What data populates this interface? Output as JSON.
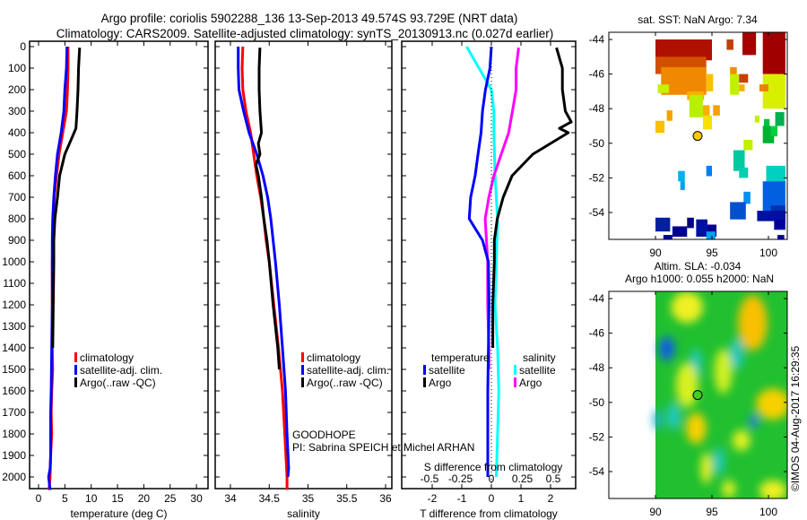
{
  "header": {
    "title_line1": "Argo profile: coriolis 5902288_136 13-Sep-2013 49.574S 93.729E (NRT data)",
    "title_line2": "Climatology: CARS2009. Satellite-adjusted climatology: synTS_20130913.nc (0.027d earlier)"
  },
  "footer": {
    "project": "GOODHOPE",
    "pi": "PI: Sabrina SPEICH et Michel ARHAN",
    "stamp": "©IMOS 04-Aug-2017 16:29:35"
  },
  "colors": {
    "climatology": "#ff0000",
    "satellite": "#0000ff",
    "argo": "#000000",
    "s_satellite": "#00ffff",
    "s_argo": "#ff00ff"
  },
  "chart_data": [
    {
      "type": "line",
      "panel": "temperature",
      "xlabel": "temperature (deg C)",
      "ylabel": "",
      "xlim": [
        -1.7,
        32
      ],
      "ylim": [
        2060,
        -25
      ],
      "xticks": [
        "0",
        "5",
        "10",
        "15",
        "20",
        "25",
        "30"
      ],
      "xtick_values": [
        0,
        5,
        10,
        15,
        20,
        25,
        30
      ],
      "yticks": [
        "0",
        "100",
        "200",
        "300",
        "400",
        "500",
        "600",
        "700",
        "800",
        "900",
        "1000",
        "1100",
        "1200",
        "1300",
        "1400",
        "1500",
        "1600",
        "1700",
        "1800",
        "1900",
        "2000"
      ],
      "legend": [
        "climatology",
        "satellite-adj. clim.",
        "Argo(..raw -QC)"
      ],
      "series": [
        {
          "name": "climatology",
          "color": "#ff0000",
          "depth": [
            0,
            100,
            200,
            300,
            400,
            500,
            600,
            700,
            800,
            900,
            1000,
            1200,
            1400,
            1500,
            1600,
            1700,
            1800,
            1900,
            2000,
            2060
          ],
          "values": [
            5.6,
            5.6,
            5.5,
            5.3,
            4.6,
            3.9,
            3.4,
            3.0,
            2.8,
            2.7,
            2.6,
            2.6,
            2.6,
            2.7,
            2.5,
            2.4,
            2.5,
            2.3,
            2.2,
            2.0
          ]
        },
        {
          "name": "satellite-adj. clim.",
          "color": "#0000ff",
          "depth": [
            0,
            100,
            200,
            300,
            400,
            500,
            600,
            700,
            800,
            900,
            1000,
            1200,
            1400,
            1600,
            1700,
            1800,
            1900,
            1960,
            2000,
            2060
          ],
          "values": [
            5.4,
            5.3,
            5.0,
            4.8,
            4.3,
            3.6,
            3.2,
            2.9,
            2.7,
            2.6,
            2.6,
            2.6,
            2.5,
            2.4,
            2.3,
            2.3,
            2.3,
            2.2,
            1.9,
            2.2
          ]
        },
        {
          "name": "Argo(..raw -QC)",
          "color": "#000000",
          "depth": [
            5,
            100,
            200,
            300,
            380,
            420,
            500,
            600,
            700,
            800,
            900,
            1000,
            1200,
            1400
          ],
          "values": [
            7.8,
            7.6,
            7.5,
            7.3,
            7.1,
            6.4,
            5.0,
            4.0,
            3.6,
            3.1,
            2.9,
            2.9,
            2.8,
            2.7
          ]
        }
      ]
    },
    {
      "type": "line",
      "panel": "salinity",
      "xlabel": "salinity",
      "xlim": [
        33.8,
        36.1
      ],
      "ylim": [
        2060,
        -25
      ],
      "xticks": [
        "34",
        "34.5",
        "35",
        "35.5",
        "36"
      ],
      "xtick_values": [
        34,
        34.5,
        35,
        35.5,
        36
      ],
      "legend": [
        "climatology",
        "satellite-adj. clim.",
        "Argo(..raw -QC)"
      ],
      "series": [
        {
          "name": "climatology",
          "color": "#ff0000",
          "depth": [
            0,
            100,
            200,
            300,
            400,
            500,
            600,
            700,
            800,
            900,
            1000,
            1200,
            1400,
            1600,
            1800,
            2000,
            2060
          ],
          "values": [
            34.16,
            34.15,
            34.16,
            34.2,
            34.26,
            34.3,
            34.34,
            34.39,
            34.43,
            34.46,
            34.5,
            34.56,
            34.62,
            34.67,
            34.7,
            34.73,
            34.73
          ]
        },
        {
          "name": "satellite-adj. clim.",
          "color": "#0000ff",
          "depth": [
            0,
            100,
            200,
            300,
            400,
            500,
            600,
            700,
            800,
            900,
            1000,
            1200,
            1400,
            1600,
            1800,
            1960,
            2000
          ],
          "values": [
            34.1,
            34.1,
            34.11,
            34.17,
            34.24,
            34.34,
            34.42,
            34.48,
            34.52,
            34.55,
            34.58,
            34.63,
            34.67,
            34.71,
            34.73,
            34.75,
            34.74
          ]
        },
        {
          "name": "Argo(..raw -QC)",
          "color": "#000000",
          "depth": [
            5,
            100,
            200,
            300,
            400,
            450,
            500,
            550,
            600,
            700,
            800,
            900,
            1000,
            1200,
            1400,
            1500
          ],
          "values": [
            34.38,
            34.37,
            34.37,
            34.38,
            34.4,
            34.36,
            34.38,
            34.33,
            34.36,
            34.4,
            34.43,
            34.47,
            34.5,
            34.55,
            34.61,
            34.63
          ]
        }
      ]
    },
    {
      "type": "line",
      "panel": "difference",
      "xlabel": "T difference from climatology",
      "xlabel_top": "S difference from climatology",
      "xlim": [
        -3,
        3
      ],
      "xticks": [
        "-2",
        "-1",
        "0",
        "1",
        "2"
      ],
      "xtick_values": [
        -2,
        -1,
        0,
        1,
        2
      ],
      "s_xticks": [
        "-0.5",
        "-0.25",
        "0",
        "0.25",
        "0.5"
      ],
      "s_xtick_values": [
        -0.5,
        -0.25,
        0,
        0.25,
        0.5
      ],
      "legend_headers": [
        "temperature",
        "salinity"
      ],
      "legend": [
        "satellite",
        "Argo",
        "satellite",
        "Argo"
      ],
      "series": [
        {
          "name": "T satellite",
          "color": "#0000ff",
          "axis": "T",
          "depth": [
            0,
            100,
            200,
            300,
            400,
            500,
            600,
            700,
            800,
            900,
            1000,
            1200,
            1400,
            1600,
            2000
          ],
          "values": [
            0.0,
            -0.05,
            -0.2,
            -0.3,
            -0.35,
            -0.45,
            -0.55,
            -0.7,
            -0.75,
            -0.3,
            -0.1,
            -0.08,
            -0.1,
            -0.12,
            -0.12
          ]
        },
        {
          "name": "T Argo",
          "color": "#000000",
          "axis": "T",
          "depth": [
            5,
            100,
            200,
            300,
            350,
            380,
            400,
            450,
            500,
            600,
            700,
            800,
            900,
            1000,
            1200,
            1400
          ],
          "values": [
            2.2,
            2.4,
            2.4,
            2.5,
            2.7,
            2.3,
            2.6,
            2.0,
            1.4,
            0.7,
            0.4,
            0.2,
            0.1,
            0.1,
            0.05,
            0.05
          ]
        },
        {
          "name": "S satellite",
          "color": "#00ffff",
          "axis": "S",
          "depth": [
            0,
            100,
            200,
            300,
            400,
            600,
            800,
            1000,
            1200,
            1400,
            1600,
            1800,
            2000
          ],
          "values": [
            -0.2,
            -0.1,
            0.0,
            0.02,
            0.02,
            0.03,
            0.05,
            0.04,
            0.03,
            0.05,
            0.06,
            0.05,
            0.04
          ]
        },
        {
          "name": "S Argo",
          "color": "#ff00ff",
          "axis": "S",
          "depth": [
            5,
            100,
            200,
            300,
            400,
            500,
            600,
            700,
            800,
            900,
            1000,
            1200,
            1400,
            1500
          ],
          "values": [
            0.22,
            0.2,
            0.2,
            0.17,
            0.14,
            0.08,
            0.02,
            -0.02,
            -0.05,
            -0.04,
            -0.03,
            -0.03,
            -0.02,
            -0.02
          ]
        }
      ]
    },
    {
      "type": "heatmap",
      "panel": "sst-map",
      "title": "sat. SST: NaN Argo: 7.34",
      "xticks": [
        "90",
        "95",
        "100"
      ],
      "xtick_values": [
        90,
        95,
        100
      ],
      "yticks": [
        "-44",
        "-46",
        "-48",
        "-50",
        "-52",
        "-54"
      ],
      "ytick_values": [
        -44,
        -46,
        -48,
        -50,
        -52,
        -54
      ],
      "xlim": [
        86,
        101.6
      ],
      "ylim": [
        -55.6,
        -43.6
      ],
      "argo_position": {
        "lon": 93.729,
        "lat": -49.574,
        "color": "#f8c800"
      },
      "cells": [
        [
          90.0,
          -44.0,
          5.0,
          1.2,
          "#b01000"
        ],
        [
          90.0,
          -45.0,
          4.5,
          1.0,
          "#d05000"
        ],
        [
          90.5,
          -45.6,
          4.0,
          1.6,
          "#f08800"
        ],
        [
          90.2,
          -46.6,
          1.0,
          0.5,
          "#c8f000"
        ],
        [
          92.8,
          -47.0,
          1.5,
          0.5,
          "#f8b000"
        ],
        [
          94.5,
          -46.0,
          0.6,
          1.0,
          "#f8c000"
        ],
        [
          93.0,
          -47.2,
          1.2,
          1.3,
          "#b8f000"
        ],
        [
          94.2,
          -47.8,
          0.6,
          0.6,
          "#f8b000"
        ],
        [
          95.1,
          -47.8,
          0.6,
          0.6,
          "#f8a000"
        ],
        [
          94.2,
          -48.4,
          0.8,
          0.8,
          "#f8e000"
        ],
        [
          91.0,
          -48.1,
          0.5,
          0.6,
          "#f8a000"
        ],
        [
          90.0,
          -48.7,
          0.8,
          0.7,
          "#f8c000"
        ],
        [
          96.3,
          -44.0,
          0.6,
          0.6,
          "#c04000"
        ],
        [
          94.5,
          -44.6,
          0.5,
          0.6,
          "#b01000"
        ],
        [
          97.7,
          -43.6,
          1.2,
          1.3,
          "#a80000"
        ],
        [
          99.5,
          -43.6,
          2.0,
          2.4,
          "#a00000"
        ],
        [
          96.6,
          -45.6,
          0.6,
          0.5,
          "#f09000"
        ],
        [
          96.6,
          -46.0,
          0.8,
          1.2,
          "#c0f000"
        ],
        [
          97.4,
          -46.0,
          0.8,
          0.5,
          "#c84000"
        ],
        [
          97.4,
          -46.6,
          0.5,
          0.4,
          "#f8b000"
        ],
        [
          99.5,
          -46.0,
          2.0,
          2.0,
          "#d8f000"
        ],
        [
          99.2,
          -46.6,
          0.8,
          0.4,
          "#f08000"
        ],
        [
          98.8,
          -48.4,
          0.4,
          0.4,
          "#c0f000"
        ],
        [
          99.6,
          -48.6,
          0.5,
          0.6,
          "#00c040"
        ],
        [
          99.5,
          -49.0,
          1.0,
          1.0,
          "#00b030"
        ],
        [
          100.6,
          -48.2,
          0.8,
          0.8,
          "#00b050"
        ],
        [
          100.2,
          -49.0,
          0.6,
          0.6,
          "#00d040"
        ],
        [
          97.8,
          -49.8,
          0.8,
          0.6,
          "#c0f000"
        ],
        [
          96.9,
          -50.4,
          1.0,
          1.2,
          "#00c8a0"
        ],
        [
          97.4,
          -51.4,
          0.8,
          0.6,
          "#00d0b0"
        ],
        [
          99.8,
          -51.3,
          1.7,
          1.2,
          "#00d0c0"
        ],
        [
          99.5,
          -52.2,
          2.0,
          1.8,
          "#0060e0"
        ],
        [
          100.2,
          -53.6,
          1.3,
          0.8,
          "#0030b0"
        ],
        [
          92.0,
          -51.6,
          0.6,
          0.6,
          "#00b0f0"
        ],
        [
          92.2,
          -52.2,
          0.4,
          0.5,
          "#00a0f0"
        ],
        [
          94.5,
          -51.3,
          0.5,
          0.6,
          "#0080f0"
        ],
        [
          97.8,
          -52.8,
          0.6,
          0.7,
          "#0090f0"
        ],
        [
          96.6,
          -53.4,
          1.4,
          1.0,
          "#0050d0"
        ],
        [
          99.0,
          -53.9,
          2.5,
          0.6,
          "#0010a0"
        ],
        [
          100.5,
          -54.4,
          1.0,
          0.6,
          "#0000a0"
        ],
        [
          90.0,
          -54.3,
          1.3,
          0.8,
          "#0020a0"
        ],
        [
          91.5,
          -54.8,
          1.3,
          0.6,
          "#000090"
        ],
        [
          92.8,
          -54.3,
          0.6,
          0.6,
          "#000080"
        ],
        [
          93.6,
          -54.4,
          1.0,
          1.0,
          "#0010a0"
        ],
        [
          94.6,
          -54.7,
          0.8,
          0.7,
          "#000090"
        ],
        [
          94.5,
          -55.1,
          0.8,
          0.5,
          "#00a0f0"
        ],
        [
          90.7,
          -55.3,
          0.8,
          0.3,
          "#0000a0"
        ],
        [
          100.8,
          -55.3,
          0.6,
          0.3,
          "#0000a0"
        ]
      ]
    },
    {
      "type": "heatmap",
      "panel": "sla-map",
      "title_line1": "Altim. SLA: -0.034",
      "title_line2": "Argo h1000: 0.055 h2000: NaN",
      "xticks": [
        "90",
        "95",
        "100"
      ],
      "xtick_values": [
        90,
        95,
        100
      ],
      "yticks": [
        "-44",
        "-46",
        "-48",
        "-50",
        "-52",
        "-54"
      ],
      "ytick_values": [
        -44,
        -46,
        -48,
        -50,
        -52,
        -54
      ],
      "xlim": [
        86,
        101.6
      ],
      "ylim": [
        -55.6,
        -43.6
      ],
      "argo_position": {
        "lon": 93.729,
        "lat": -49.574,
        "color": "#40d020"
      },
      "background": "#20c030",
      "blobs": [
        [
          92.8,
          -44.5,
          1.4,
          0.9,
          "#f0f020"
        ],
        [
          98.6,
          -45.4,
          1.3,
          1.6,
          "#f8c000"
        ],
        [
          91.0,
          -46.9,
          0.7,
          0.7,
          "#1060e0"
        ],
        [
          93.6,
          -47.8,
          0.5,
          0.9,
          "#20c8c0"
        ],
        [
          92.8,
          -49.0,
          1.0,
          1.3,
          "#d8f020"
        ],
        [
          96.0,
          -48.2,
          0.8,
          1.3,
          "#d0f020"
        ],
        [
          100.4,
          -50.1,
          1.5,
          0.9,
          "#f8d000"
        ],
        [
          93.6,
          -51.5,
          0.9,
          0.9,
          "#f8d000"
        ],
        [
          98.7,
          -51.1,
          0.4,
          0.4,
          "#2080f0"
        ],
        [
          97.6,
          -52.2,
          0.8,
          0.6,
          "#e0f020"
        ],
        [
          94.5,
          -53.8,
          0.5,
          0.9,
          "#e8f020"
        ],
        [
          100.4,
          -55.1,
          1.2,
          0.6,
          "#f0f020"
        ],
        [
          95.6,
          -53.4,
          0.5,
          0.8,
          "#20c8c0"
        ],
        [
          97.2,
          -47.2,
          0.6,
          0.9,
          "#20c8c0"
        ],
        [
          91.6,
          -50.8,
          0.6,
          0.8,
          "#20c8c0"
        ],
        [
          90.2,
          -51.0,
          0.4,
          0.6,
          "#20b0d0"
        ],
        [
          96.5,
          -55.0,
          0.6,
          0.5,
          "#e0f020"
        ]
      ]
    }
  ]
}
